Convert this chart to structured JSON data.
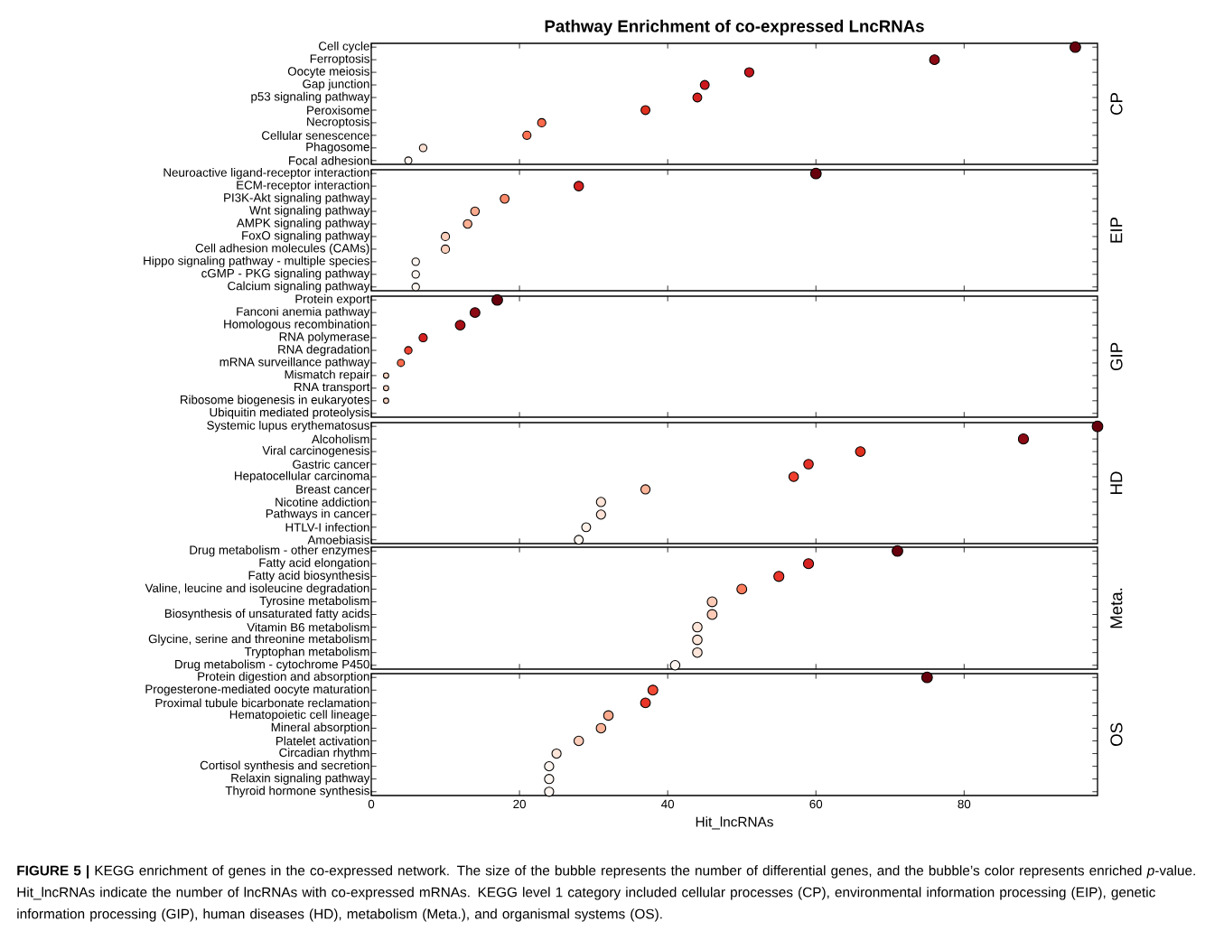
{
  "chart_data": [
    {
      "type": "bubble",
      "orientation": "horizontal",
      "title": "Pathway Enrichment of co-expressed LncRNAs",
      "ylabel": "CP",
      "tick_labels": "y",
      "xlim": [
        0,
        98
      ],
      "xticks": [
        {
          "value": 0,
          "label": null
        },
        {
          "value": 20,
          "label": null
        },
        {
          "value": 40,
          "label": null
        },
        {
          "value": 60,
          "label": null
        },
        {
          "value": 80,
          "label": null
        }
      ],
      "categories": [
        "Cell cycle",
        "Ferroptosis",
        "Oocyte meiosis",
        "Gap junction",
        "p53 signaling pathway",
        "Peroxisome",
        "Necroptosis",
        "Cellular senescence",
        "Phagosome",
        "Focal adhesion"
      ],
      "values": [
        95,
        76,
        51,
        45,
        44,
        37,
        23,
        21,
        7,
        5
      ],
      "sizes": [
        1,
        0.85,
        0.75,
        0.7,
        0.7,
        0.7,
        0.6,
        0.6,
        0.5,
        0.45
      ],
      "colors": [
        "#67000d",
        "#8b0a14",
        "#c4161c",
        "#cb181d",
        "#d52221",
        "#e0301e",
        "#fb6a4a",
        "#fb7050",
        "#fee0d2",
        "#fff5f0"
      ]
    },
    {
      "type": "bubble",
      "orientation": "horizontal",
      "ylabel": "EIP",
      "tick_labels": "y",
      "xlim": [
        0,
        98
      ],
      "xticks": [
        {
          "value": 0,
          "label": null
        },
        {
          "value": 20,
          "label": null
        },
        {
          "value": 40,
          "label": null
        },
        {
          "value": 60,
          "label": null
        },
        {
          "value": 80,
          "label": null
        }
      ],
      "categories": [
        "Neuroactive ligand-receptor interaction",
        "ECM-receptor interaction",
        "PI3K-Akt signaling pathway",
        "Wnt signaling pathway",
        "AMPK signaling pathway",
        "FoxO signaling pathway",
        "Cell adhesion molecules (CAMs)",
        "Hippo signaling pathway - multiple species",
        "cGMP - PKG signaling pathway",
        "Calcium signaling pathway"
      ],
      "values": [
        60,
        28,
        18,
        14,
        13,
        10,
        10,
        6,
        6,
        6
      ],
      "sizes": [
        1,
        0.8,
        0.7,
        0.65,
        0.65,
        0.6,
        0.6,
        0.5,
        0.5,
        0.5
      ],
      "colors": [
        "#67000d",
        "#d52221",
        "#fc8a6a",
        "#fcab8f",
        "#fcaf93",
        "#fdd0bc",
        "#fdd0bc",
        "#fff5f0",
        "#fff5f0",
        "#fff5f0"
      ]
    },
    {
      "type": "bubble",
      "orientation": "horizontal",
      "ylabel": "GIP",
      "tick_labels": "y",
      "xlim": [
        0,
        98
      ],
      "xticks": [
        {
          "value": 0,
          "label": null
        },
        {
          "value": 20,
          "label": null
        },
        {
          "value": 40,
          "label": null
        },
        {
          "value": 60,
          "label": null
        },
        {
          "value": 80,
          "label": null
        }
      ],
      "categories": [
        "Protein export",
        "Fanconi anemia pathway",
        "Homologous recombination",
        "RNA polymerase",
        "RNA degradation",
        "mRNA surveillance pathway",
        "Mismatch repair",
        "RNA transport",
        "Ribosome biogenesis in eukaryotes",
        "Ubiquitin mediated proteolysis"
      ],
      "values": [
        17,
        14,
        12,
        7,
        5,
        4,
        2,
        2,
        2,
        null
      ],
      "sizes": [
        1,
        0.85,
        0.85,
        0.6,
        0.5,
        0.45,
        0.25,
        0.25,
        0.25,
        null
      ],
      "colors": [
        "#67000d",
        "#8b0a14",
        "#a50f15",
        "#d52221",
        "#f14432",
        "#fb6a4a",
        "#fdd4c2",
        "#fdd4c2",
        "#fdd4c2",
        "#fdd4c2"
      ]
    },
    {
      "type": "bubble",
      "orientation": "horizontal",
      "ylabel": "HD",
      "tick_labels": "y",
      "xlim": [
        0,
        98
      ],
      "xticks": [
        {
          "value": 0,
          "label": null
        },
        {
          "value": 20,
          "label": null
        },
        {
          "value": 40,
          "label": null
        },
        {
          "value": 60,
          "label": null
        },
        {
          "value": 80,
          "label": null
        }
      ],
      "categories": [
        "Systemic lupus erythematosus",
        "Alcoholism",
        "Viral carcinogenesis",
        "Gastric cancer",
        "Hepatocellular carcinoma",
        "Breast cancer",
        "Nicotine addiction",
        "Pathways in cancer",
        "HTLV-I infection",
        "Amoebiasis"
      ],
      "values": [
        98,
        88,
        66,
        59,
        57,
        37,
        31,
        31,
        29,
        28
      ],
      "sizes": [
        1,
        0.9,
        0.85,
        0.8,
        0.8,
        0.75,
        0.75,
        0.75,
        0.7,
        0.7
      ],
      "colors": [
        "#67000d",
        "#8b0a14",
        "#e0301e",
        "#e53228",
        "#f03f2e",
        "#fcb499",
        "#fee3d6",
        "#fee3d6",
        "#fff0e8",
        "#fff5f0"
      ]
    },
    {
      "type": "bubble",
      "orientation": "horizontal",
      "ylabel": "Meta.",
      "tick_labels": "y",
      "xlim": [
        0,
        98
      ],
      "xticks": [
        {
          "value": 0,
          "label": null
        },
        {
          "value": 20,
          "label": null
        },
        {
          "value": 40,
          "label": null
        },
        {
          "value": 60,
          "label": null
        },
        {
          "value": 80,
          "label": null
        }
      ],
      "categories": [
        "Drug metabolism - other enzymes",
        "Fatty acid elongation",
        "Fatty acid biosynthesis",
        "Valine, leucine and isoleucine degradation",
        "Tyrosine metabolism",
        "Biosynthesis of unsaturated fatty acids",
        "Vitamin B6 metabolism",
        "Glycine, serine and threonine metabolism",
        "Tryptophan metabolism",
        "Drug metabolism - cytochrome P450"
      ],
      "values": [
        71,
        59,
        55,
        50,
        46,
        46,
        44,
        44,
        44,
        41
      ],
      "sizes": [
        1,
        0.9,
        0.9,
        0.85,
        0.85,
        0.85,
        0.8,
        0.8,
        0.8,
        0.8
      ],
      "colors": [
        "#67000d",
        "#d52221",
        "#e83429",
        "#fb7c5c",
        "#fdcab5",
        "#fdcab5",
        "#fee5d9",
        "#fee5d9",
        "#fee5d9",
        "#fff5f0"
      ]
    },
    {
      "type": "bubble",
      "orientation": "horizontal",
      "ylabel": "OS",
      "xlabel": "Hit_lncRNAs",
      "xlim": [
        0,
        98
      ],
      "xticks": [
        0,
        20,
        40,
        60,
        80
      ],
      "categories": [
        "Protein digestion and absorption",
        "Progesterone-mediated oocyte maturation",
        "Proximal tubule bicarbonate reclamation",
        "Hematopoietic cell lineage",
        "Mineral absorption",
        "Platelet activation",
        "Circadian rhythm",
        "Cortisol synthesis and secretion",
        "Relaxin signaling pathway",
        "Thyroid hormone synthesis"
      ],
      "values": [
        75,
        38,
        37,
        32,
        31,
        28,
        25,
        24,
        24,
        24
      ],
      "sizes": [
        1,
        0.85,
        0.85,
        0.8,
        0.8,
        0.8,
        0.75,
        0.75,
        0.75,
        0.75
      ],
      "colors": [
        "#67000d",
        "#f34a36",
        "#e83429",
        "#fcaa8d",
        "#fcb499",
        "#fdcdb9",
        "#fee5d9",
        "#fff5f0",
        "#fff5f0",
        "#fff5f0"
      ],
      "annotations": [
        "**FIGURE 5 |** KEGG enrichment of genes in the co-expressed network. The size of the bubble represents the number of differential genes, and the bubble’s color represents enriched *p*-value. Hit_lncRNAs indicate the number of lncRNAs with co-expressed mRNAs. KEGG level 1 category included cellular processes (CP), environmental information processing (EIP), genetic information processing (GIP), human diseases (HD), metabolism (Meta.), and organismal systems (OS)."
      ]
    }
  ]
}
